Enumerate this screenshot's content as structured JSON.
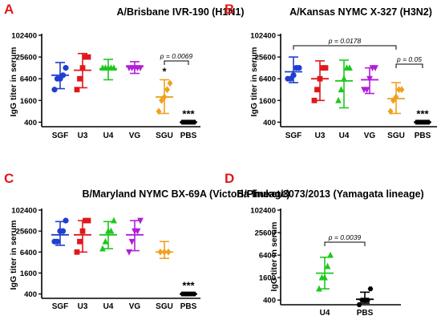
{
  "figure": {
    "panels": [
      {
        "letter": "A",
        "title": "A/Brisbane IVR-190 (H1N1)",
        "ylabel": "IgG titer in serum",
        "yticks": [
          "400",
          "1600",
          "6400",
          "25600",
          "102400"
        ],
        "annotations": [
          {
            "text": "p = 0.0069",
            "from": 4,
            "to": 5
          },
          {
            "text": "*",
            "over": 4
          },
          {
            "text": "***",
            "over": 5
          }
        ]
      },
      {
        "letter": "B",
        "title": "A/Kansas NYMC X-327 (H3N2)",
        "ylabel": "IgG titer in serum",
        "yticks": [
          "400",
          "1600",
          "6400",
          "25600",
          "102400"
        ],
        "annotations": [
          {
            "text": "p = 0.0178",
            "from": 0,
            "to": 4
          },
          {
            "text": "p = 0.05",
            "from": 4,
            "to": 5
          },
          {
            "text": "***",
            "over": 5
          }
        ]
      },
      {
        "letter": "C",
        "title": "B/Maryland NYMC BX-69A (Victoria lineage)",
        "ylabel": "IgG titer in serum",
        "yticks": [
          "400",
          "1600",
          "6400",
          "25600",
          "102400"
        ],
        "annotations": [
          {
            "text": "***",
            "over": 5
          }
        ]
      },
      {
        "letter": "D",
        "title": "B/Phuket/3073/2013 (Yamagata lineage)",
        "ylabel": "IgG titer in serum",
        "yticks": [
          "400",
          "1600",
          "6400",
          "25600",
          "102400"
        ],
        "annotations": [
          {
            "text": "p = 0.0039",
            "from": 0,
            "to": 1
          }
        ]
      }
    ]
  },
  "chart_data": [
    {
      "type": "scatter",
      "title": "A/Brisbane IVR-190 (H1N1)",
      "ylabel": "IgG titer in serum",
      "yscale": "log2",
      "ylim": [
        300,
        102400
      ],
      "categories": [
        "SGF",
        "U3",
        "U4",
        "VG",
        "SGU",
        "PBS"
      ],
      "groups": [
        {
          "name": "SGF",
          "color": "#1f3fd0",
          "marker": "circle",
          "mean": 8000,
          "err": [
            3400,
            18000
          ],
          "points": [
            3200,
            6400,
            6400,
            8000,
            12800
          ]
        },
        {
          "name": "U3",
          "color": "#e0181c",
          "marker": "square",
          "mean": 11000,
          "err": [
            3600,
            32000
          ],
          "points": [
            3200,
            6400,
            12800,
            25600,
            25600
          ]
        },
        {
          "name": "U4",
          "color": "#1ec71e",
          "marker": "triangle-up",
          "mean": 12000,
          "err": [
            6000,
            22000
          ],
          "points": [
            12800,
            12800,
            12800,
            12800,
            12800
          ]
        },
        {
          "name": "VG",
          "color": "#b01ed8",
          "marker": "triangle-down",
          "mean": 14000,
          "err": [
            9000,
            19000
          ],
          "points": [
            12800,
            12800,
            12800,
            12800,
            12800
          ]
        },
        {
          "name": "SGU",
          "color": "#f0a020",
          "marker": "diamond",
          "mean": 2000,
          "err": [
            700,
            6000
          ],
          "points": [
            800,
            1600,
            2000,
            3200,
            4800
          ]
        },
        {
          "name": "PBS",
          "color": "#000000",
          "marker": "hexagon",
          "mean": 400,
          "err": [
            400,
            400
          ],
          "points": [
            400,
            400,
            400,
            400,
            400
          ]
        }
      ]
    },
    {
      "type": "scatter",
      "title": "A/Kansas NYMC X-327 (H3N2)",
      "ylabel": "IgG titer in serum",
      "yscale": "log2",
      "ylim": [
        300,
        102400
      ],
      "categories": [
        "SGF",
        "U3",
        "U4",
        "VG",
        "SGU",
        "PBS"
      ],
      "groups": [
        {
          "name": "SGF",
          "color": "#1f3fd0",
          "marker": "circle",
          "mean": 10000,
          "err": [
            5000,
            25600
          ],
          "points": [
            6400,
            6400,
            8000,
            12800,
            12800
          ]
        },
        {
          "name": "U3",
          "color": "#e0181c",
          "marker": "square",
          "mean": 6400,
          "err": [
            1600,
            20000
          ],
          "points": [
            1600,
            3200,
            6400,
            12800,
            12800
          ]
        },
        {
          "name": "U4",
          "color": "#1ec71e",
          "marker": "triangle-up",
          "mean": 5600,
          "err": [
            1000,
            21000
          ],
          "points": [
            1600,
            3200,
            6400,
            12800,
            12800
          ]
        },
        {
          "name": "VG",
          "color": "#b01ed8",
          "marker": "triangle-down",
          "mean": 6000,
          "err": [
            2500,
            12800
          ],
          "points": [
            3200,
            3200,
            6400,
            12800,
            12800
          ]
        },
        {
          "name": "SGU",
          "color": "#f0a020",
          "marker": "diamond",
          "mean": 1800,
          "err": [
            700,
            5000
          ],
          "points": [
            800,
            1600,
            2000,
            3200,
            3200
          ]
        },
        {
          "name": "PBS",
          "color": "#000000",
          "marker": "hexagon",
          "mean": 400,
          "err": [
            400,
            400
          ],
          "points": [
            400,
            400,
            400,
            400,
            400
          ]
        }
      ]
    },
    {
      "type": "scatter",
      "title": "B/Maryland NYMC BX-69A (Victoria lineage)",
      "ylabel": "IgG titer in serum",
      "yscale": "log2",
      "ylim": [
        300,
        102400
      ],
      "categories": [
        "SGF",
        "U3",
        "U4",
        "VG",
        "SGU",
        "PBS"
      ],
      "groups": [
        {
          "name": "SGF",
          "color": "#1f3fd0",
          "marker": "circle",
          "mean": 20000,
          "err": [
            10000,
            48000
          ],
          "points": [
            12800,
            12800,
            25600,
            25600,
            51200
          ]
        },
        {
          "name": "U3",
          "color": "#e0181c",
          "marker": "square",
          "mean": 20000,
          "err": [
            6400,
            51200
          ],
          "points": [
            6400,
            12800,
            25600,
            51200,
            51200
          ]
        },
        {
          "name": "U4",
          "color": "#1ec71e",
          "marker": "triangle-up",
          "mean": 20000,
          "err": [
            8000,
            48000
          ],
          "points": [
            8000,
            12800,
            25600,
            25600,
            51200
          ]
        },
        {
          "name": "VG",
          "color": "#b01ed8",
          "marker": "triangle-down",
          "mean": 20000,
          "err": [
            7000,
            51200
          ],
          "points": [
            6400,
            12800,
            25600,
            25600,
            51200
          ]
        },
        {
          "name": "SGU",
          "color": "#f0a020",
          "marker": "diamond",
          "mean": 6400,
          "err": [
            4200,
            12800
          ],
          "points": [
            6400,
            6400,
            6400
          ]
        },
        {
          "name": "PBS",
          "color": "#000000",
          "marker": "hexagon",
          "mean": 400,
          "err": [
            400,
            400
          ],
          "points": [
            400,
            400,
            400,
            400,
            400
          ]
        }
      ]
    },
    {
      "type": "scatter",
      "title": "B/Phuket/3073/2013 (Yamagata lineage)",
      "ylabel": "IgG titer in serum",
      "yscale": "log2",
      "ylim": [
        300,
        102400
      ],
      "categories": [
        "U4",
        "PBS"
      ],
      "groups": [
        {
          "name": "U4",
          "color": "#1ec71e",
          "marker": "triangle-up",
          "mean": 2100,
          "err": [
            800,
            5600
          ],
          "points": [
            800,
            1600,
            1600,
            3200,
            6400
          ]
        },
        {
          "name": "PBS",
          "color": "#000000",
          "marker": "hexagon",
          "mean": 420,
          "err": [
            330,
            650
          ],
          "points": [
            300,
            400,
            400,
            400,
            800
          ]
        }
      ]
    }
  ]
}
